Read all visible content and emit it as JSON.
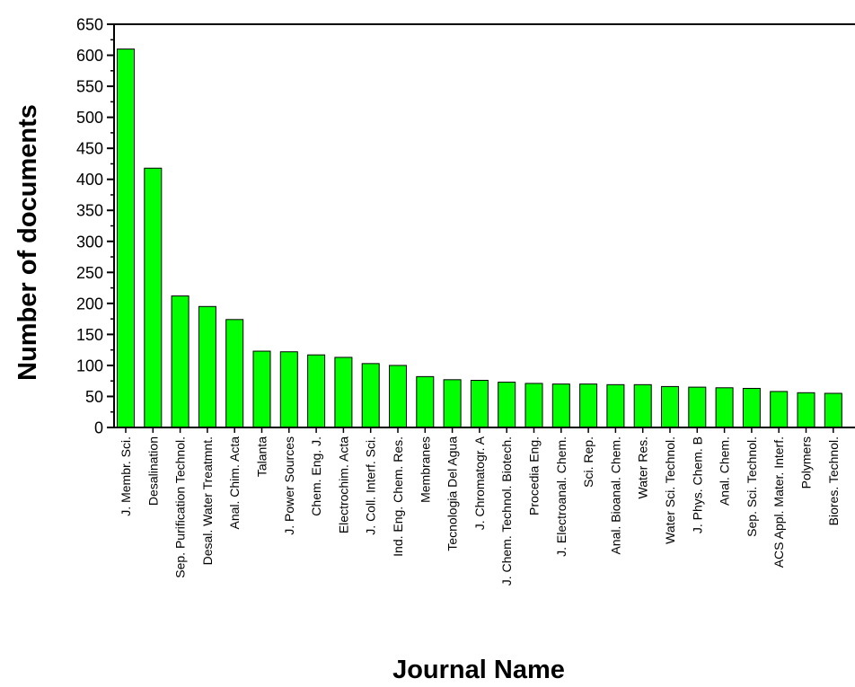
{
  "chart_data": {
    "type": "bar",
    "title": "",
    "xlabel": "Journal Name",
    "ylabel": "Number of documents",
    "ylim": [
      0,
      650
    ],
    "yticks": [
      0,
      50,
      100,
      150,
      200,
      250,
      300,
      350,
      400,
      450,
      500,
      550,
      600,
      650
    ],
    "grid": false,
    "bar_color": "#00ff00",
    "categories": [
      "J. Membr. Sci.",
      "Desalination",
      "Sep. Purification Technol.",
      "Desal. Water Treatmnt.",
      "Anal. Chim. Acta",
      "Talanta",
      "J. Power Sources",
      "Chem. Eng. J.",
      "Electrochim. Acta",
      "J. Coll. Interf. Sci.",
      "Ind. Eng. Chem. Res.",
      "Membranes",
      "Tecnologia Del Agua",
      "J. Chromatogr. A",
      "J. Chem. Technol. Biotech.",
      "Procedia Eng.",
      "J. Electroanal. Chem.",
      "Sci. Rep.",
      "Anal. Bioanal. Chem.",
      "Water Res.",
      "Water Sci. Technol.",
      "J. Phys. Chem. B",
      "Anal. Chem.",
      "Sep. Sci. Technol.",
      "ACS Appl. Mater. Interf.",
      "Polymers",
      "Biores. Technol."
    ],
    "values": [
      610,
      418,
      212,
      195,
      174,
      123,
      122,
      117,
      113,
      103,
      100,
      82,
      77,
      76,
      73,
      71,
      70,
      70,
      69,
      69,
      66,
      65,
      64,
      63,
      58,
      56,
      55
    ]
  }
}
